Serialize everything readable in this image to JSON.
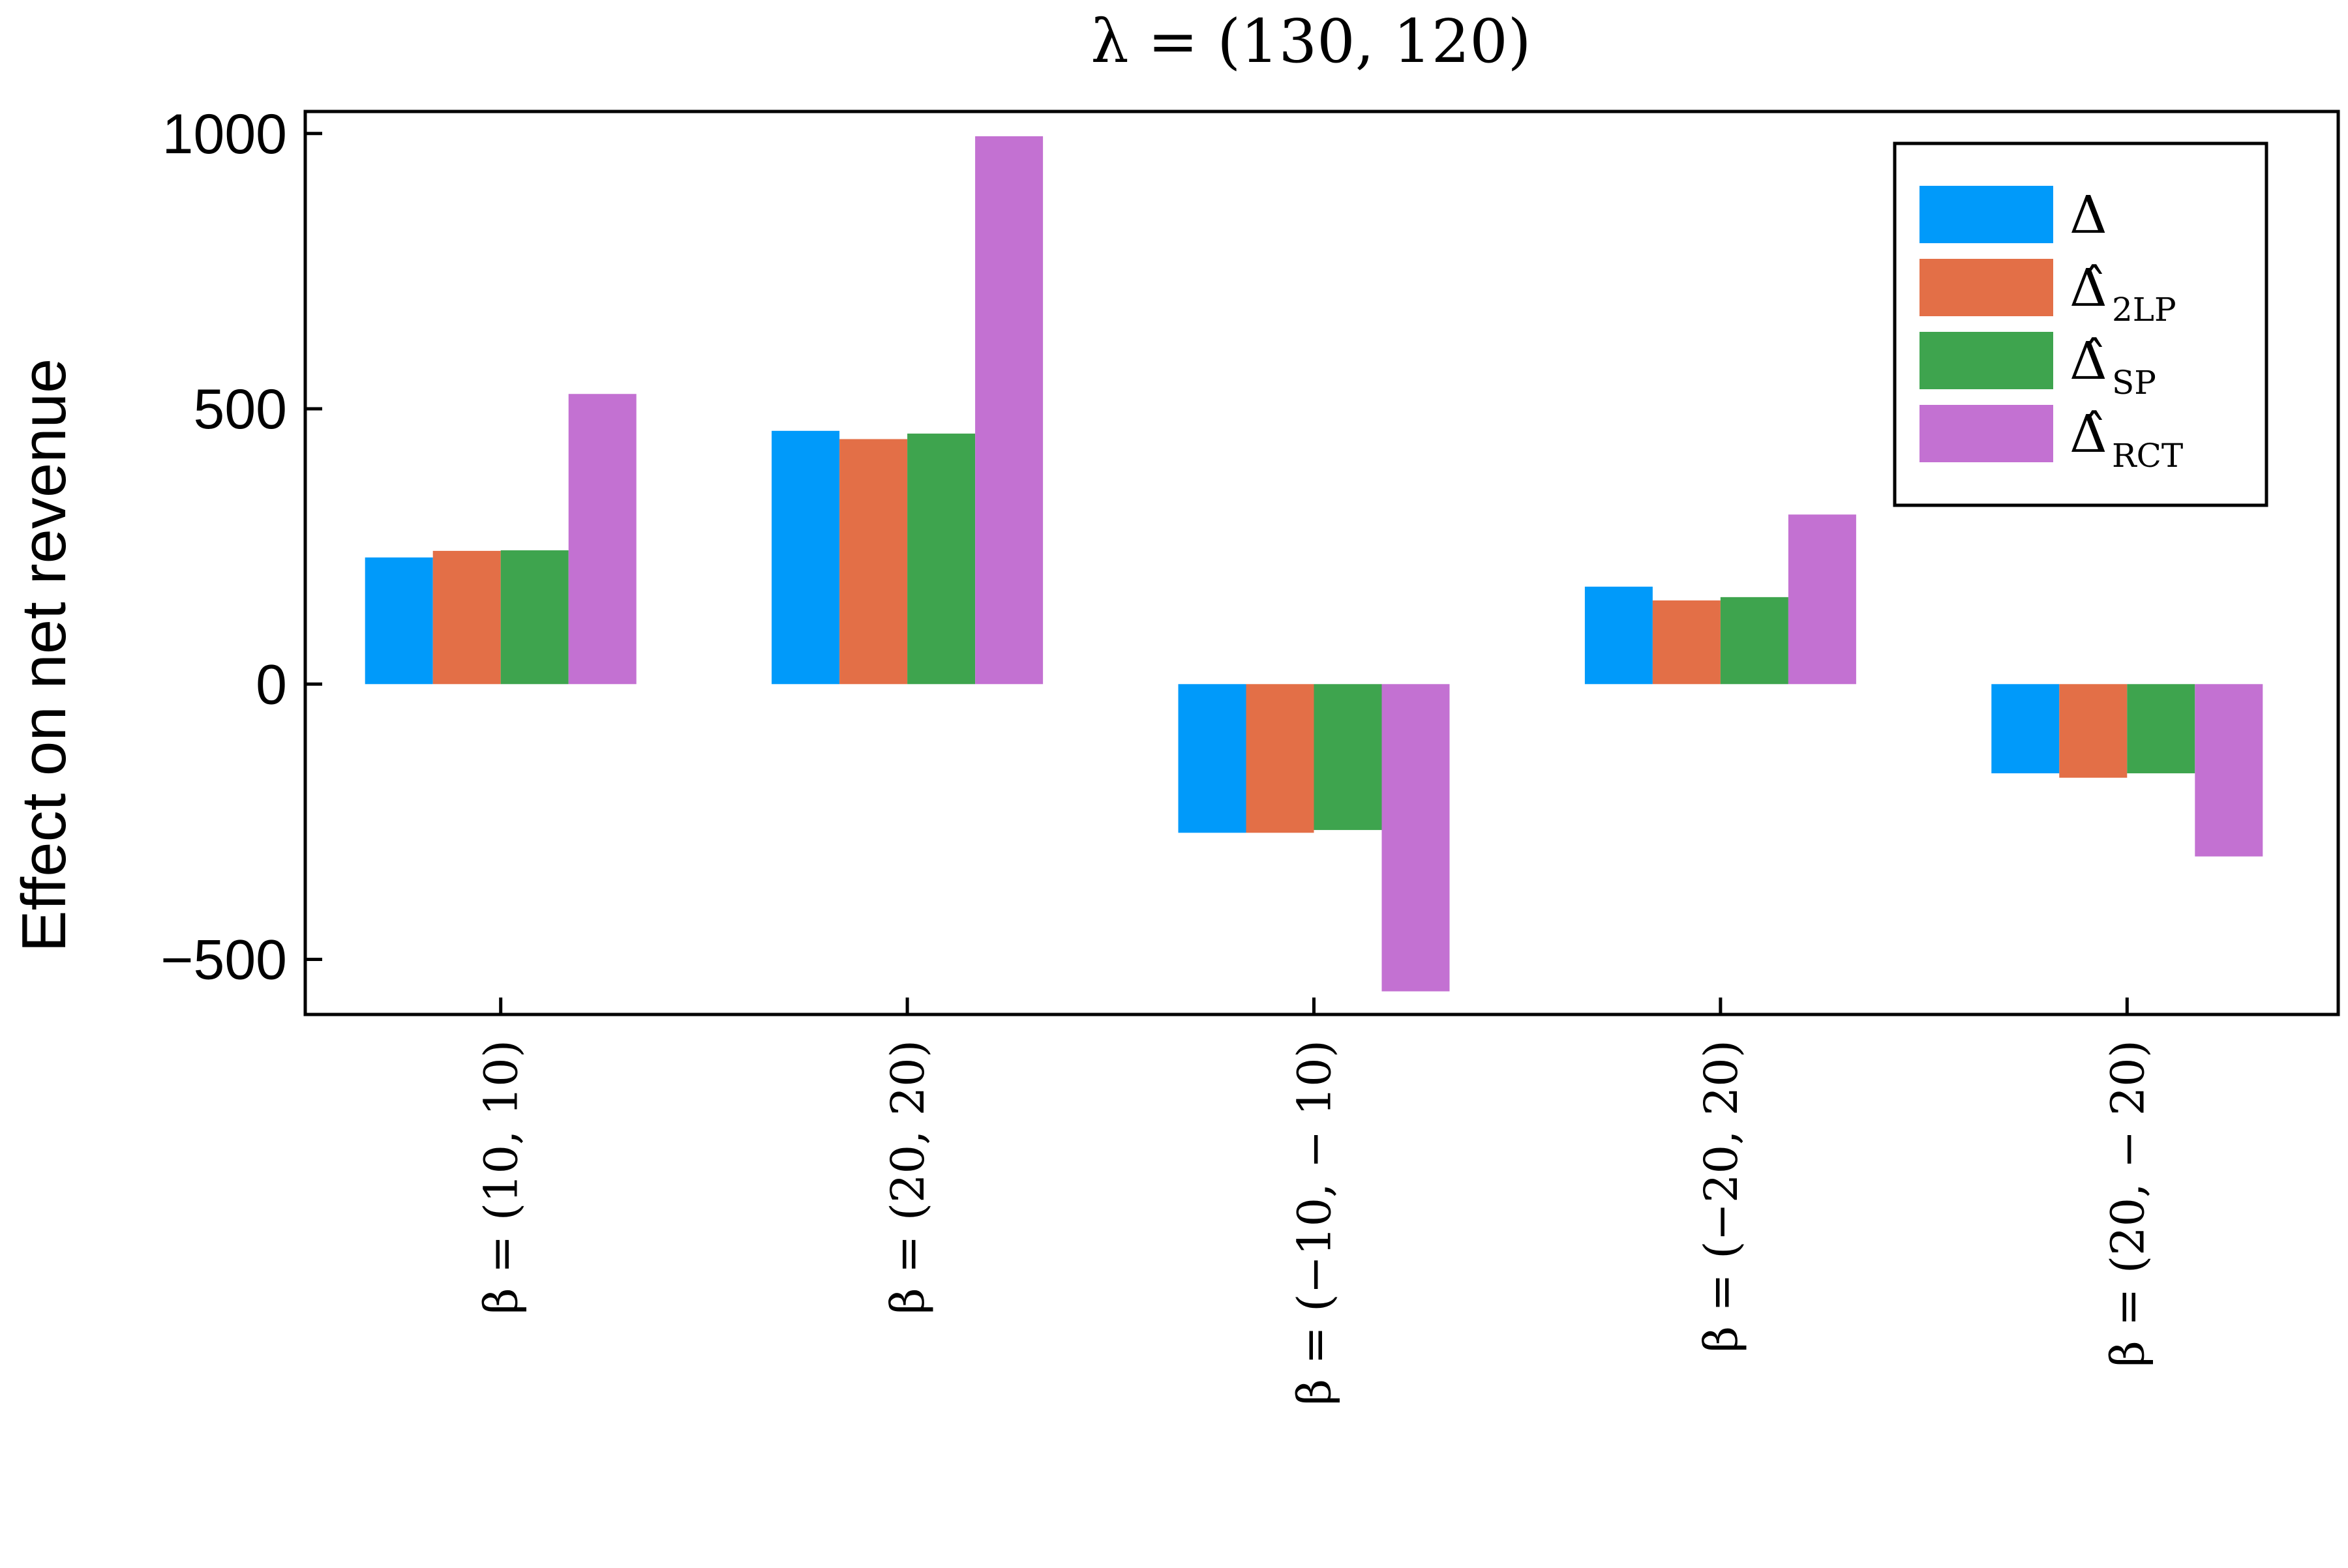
{
  "chart_data": {
    "type": "bar",
    "title": "λ = (130, 120)",
    "xlabel": "",
    "ylabel": "Effect on net revenue",
    "categories": [
      "β = (10, 10)",
      "β = (20, 20)",
      "β = (−10, − 10)",
      "β = (−20, 20)",
      "β = (20, − 20)"
    ],
    "series": [
      {
        "name": "Δ",
        "sub": "",
        "color": "#009AFA",
        "values": [
          230,
          460,
          -270,
          177,
          -162
        ]
      },
      {
        "name": "Δ̂",
        "sub": "2LP",
        "color": "#E36F47",
        "values": [
          242,
          445,
          -270,
          152,
          -170
        ]
      },
      {
        "name": "Δ̂",
        "sub": "SP",
        "color": "#3EA44E",
        "values": [
          243,
          455,
          -265,
          158,
          -162
        ]
      },
      {
        "name": "Δ̂",
        "sub": "RCT",
        "color": "#C371D2",
        "values": [
          527,
          995,
          -558,
          308,
          -313
        ]
      }
    ],
    "ylim": [
      -600,
      1040
    ],
    "yticks": [
      -500,
      0,
      500,
      1000
    ],
    "ytick_labels": [
      "−500",
      "0",
      "500",
      "1000"
    ],
    "grid": false,
    "legend_position": "top-right"
  }
}
